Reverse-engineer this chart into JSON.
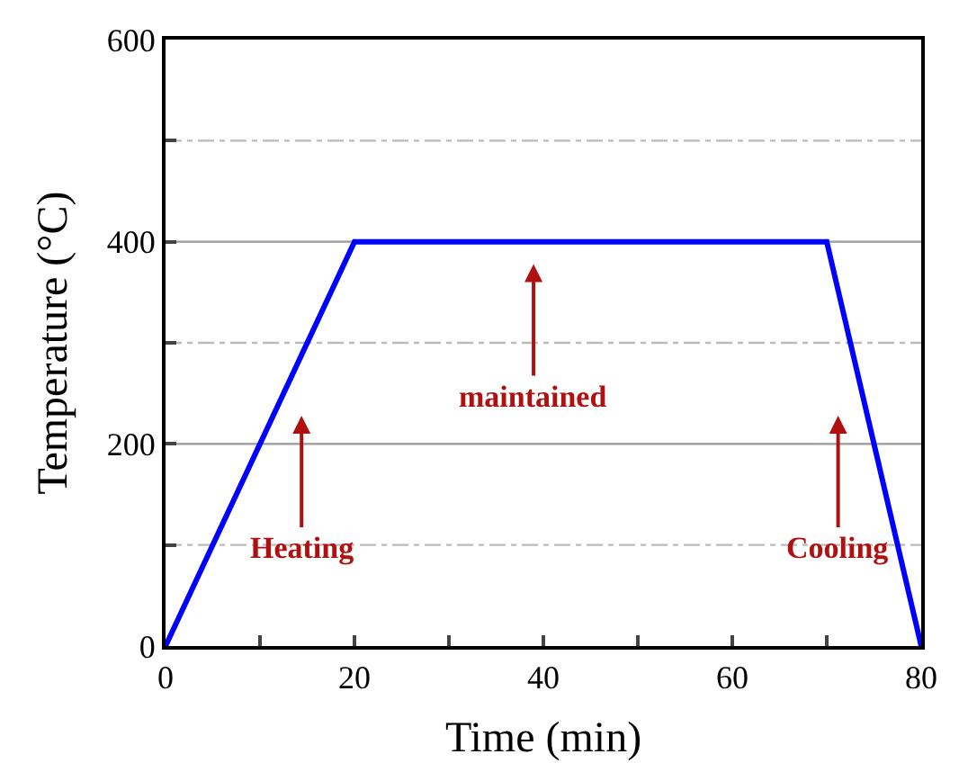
{
  "chart_data": {
    "type": "line",
    "xlabel": "Time (min)",
    "ylabel": "Temperature (°C)",
    "x": [
      0,
      20,
      70,
      80
    ],
    "series": [
      {
        "color": "#0000ff",
        "values": [
          0,
          400,
          400,
          0
        ]
      }
    ],
    "xlim": [
      0,
      80
    ],
    "ylim": [
      0,
      600
    ],
    "xticks": [
      0,
      {
        "value": 10,
        "label": null
      },
      20,
      {
        "value": 30,
        "label": null
      },
      40,
      {
        "value": 50,
        "label": null
      },
      60,
      {
        "value": 70,
        "label": null
      },
      80
    ],
    "yticks": [
      0,
      {
        "value": 100,
        "label": null
      },
      200,
      {
        "value": 300,
        "label": null
      },
      400,
      {
        "value": 500,
        "label": null
      },
      600
    ],
    "grid": "y",
    "marker": "none",
    "line_style": "solid",
    "annotations": [
      "Heating",
      "maintained",
      "Cooling"
    ]
  }
}
